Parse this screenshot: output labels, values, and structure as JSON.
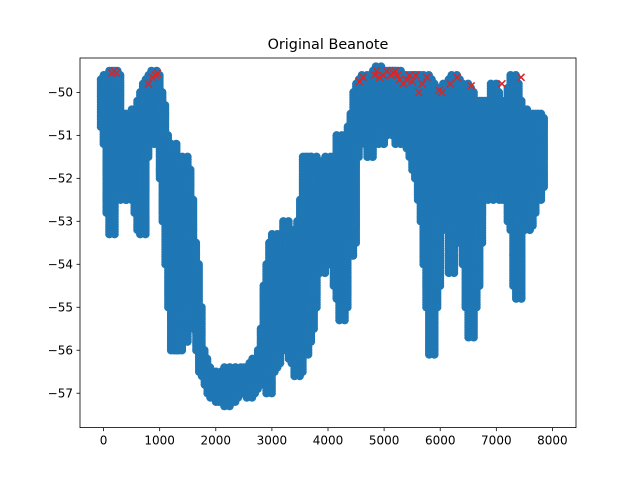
{
  "chart_data": {
    "type": "scatter",
    "title": "Original Beanote",
    "xlabel": "",
    "ylabel": "",
    "xlim": [
      -420,
      8420
    ],
    "ylim": [
      -57.8,
      -49.2
    ],
    "x_ticks": [
      0,
      1000,
      2000,
      3000,
      4000,
      5000,
      6000,
      7000,
      8000
    ],
    "x_tick_labels": [
      "0",
      "1000",
      "2000",
      "3000",
      "4000",
      "5000",
      "6000",
      "7000",
      "8000"
    ],
    "y_ticks": [
      -50,
      -51,
      -52,
      -53,
      -54,
      -55,
      -56,
      -57
    ],
    "y_tick_labels": [
      "−50",
      "−51",
      "−52",
      "−53",
      "−54",
      "−55",
      "−56",
      "−57"
    ],
    "grid": false,
    "legend": "none",
    "colors": {
      "points": "#1f77b4",
      "peaks": "#d62728"
    },
    "series": [
      {
        "marker": "circle",
        "x": [
          0,
          50,
          100,
          150,
          200,
          250,
          300,
          350,
          400,
          450,
          500,
          550,
          600,
          650,
          700,
          750,
          800,
          850,
          900,
          950,
          1000,
          1050,
          1100,
          1150,
          1200,
          1250,
          1300,
          1350,
          1400,
          1450,
          1500,
          1550,
          1600,
          1650,
          1700,
          1750,
          1800,
          1850,
          1900,
          1950,
          2000,
          2050,
          2100,
          2150,
          2200,
          2250,
          2300,
          2350,
          2400,
          2450,
          2500,
          2550,
          2600,
          2650,
          2700,
          2750,
          2800,
          2850,
          2900,
          2950,
          3000,
          3050,
          3100,
          3150,
          3200,
          3250,
          3300,
          3350,
          3400,
          3450,
          3500,
          3550,
          3600,
          3650,
          3700,
          3750,
          3800,
          3850,
          3900,
          3950,
          4000,
          4050,
          4100,
          4150,
          4200,
          4250,
          4300,
          4350,
          4400,
          4450,
          4500,
          4550,
          4600,
          4650,
          4700,
          4750,
          4800,
          4850,
          4900,
          4950,
          5000,
          5050,
          5100,
          5150,
          5200,
          5250,
          5300,
          5350,
          5400,
          5450,
          5500,
          5550,
          5600,
          5650,
          5700,
          5750,
          5800,
          5850,
          5900,
          5950,
          6000,
          6050,
          6100,
          6150,
          6200,
          6250,
          6300,
          6350,
          6400,
          6450,
          6500,
          6550,
          6600,
          6650,
          6700,
          6750,
          6800,
          6850,
          6900,
          6950,
          7000,
          7050,
          7100,
          7150,
          7200,
          7250,
          7300,
          7350,
          7400,
          7450,
          7500,
          7550,
          7600,
          7650,
          7700,
          7750,
          7800,
          7850,
          7900,
          7950,
          8000
        ],
        "ymin": [
          -50.8,
          -51.2,
          -52.8,
          -53.3,
          -52.5,
          -51.8,
          -52.0,
          -52.5,
          -52.2,
          -52.5,
          -51.5,
          -52.4,
          -52.8,
          -53.2,
          -53.3,
          -51.5,
          -50.8,
          -50.8,
          -50.9,
          -51.2,
          -51.0,
          -52.0,
          -53.0,
          -54.0,
          -55.0,
          -56.0,
          -56.0,
          -56.0,
          -55.5,
          -55.8,
          -55.0,
          -54.0,
          -55.0,
          -55.5,
          -56.0,
          -56.5,
          -56.6,
          -56.8,
          -57.0,
          -57.1,
          -57.1,
          -57.2,
          -57.2,
          -57.2,
          -57.3,
          -57.2,
          -57.2,
          -57.1,
          -57.0,
          -57.0,
          -57.0,
          -57.0,
          -57.1,
          -57.0,
          -56.9,
          -56.8,
          -56.8,
          -56.5,
          -56.6,
          -57.0,
          -56.5,
          -56.4,
          -56.3,
          -55.9,
          -55.9,
          -56.0,
          -56.0,
          -56.2,
          -56.3,
          -56.6,
          -56.5,
          -56.0,
          -56.1,
          -55.8,
          -55.5,
          -55.0,
          -54.0,
          -53.8,
          -54.2,
          -54.0,
          -54.0,
          -54.0,
          -53.8,
          -54.5,
          -54.8,
          -55.3,
          -55.0,
          -53.5,
          -53.8,
          -53.5,
          -51.5,
          -51.0,
          -51.0,
          -51.0,
          -51.2,
          -51.5,
          -51.2,
          -51.0,
          -51.0,
          -51.2,
          -51.0,
          -50.8,
          -50.7,
          -50.9,
          -51.0,
          -51.2,
          -51.0,
          -51.0,
          -51.2,
          -51.3,
          -51.5,
          -51.8,
          -52.0,
          -52.5,
          -53.0,
          -54.0,
          -55.0,
          -56.1,
          -55.0,
          -54.5,
          -53.0,
          -52.5,
          -52.8,
          -53.2,
          -54.2,
          -53.5,
          -52.5,
          -52.8,
          -53.5,
          -54.0,
          -55.0,
          -55.7,
          -55.0,
          -54.5,
          -53.5,
          -52.5,
          -52.0,
          -52.3,
          -52.5,
          -52.0,
          -52.0,
          -51.8,
          -52.5,
          -52.5,
          -52.0,
          -53.0,
          -53.2,
          -54.5,
          -54.8,
          -53.0,
          -52.5,
          -53.2,
          -53.1,
          -52.8,
          -52.5,
          -52.5,
          -52.2,
          -52.0,
          -51.8
        ],
        "ymax": [
          -49.7,
          -49.6,
          -49.6,
          -49.5,
          -49.5,
          -49.6,
          -50.5,
          -50.5,
          -50.6,
          -50.8,
          -50.6,
          -50.4,
          -50.4,
          -50.2,
          -50.0,
          -49.8,
          -49.7,
          -49.6,
          -49.5,
          -49.6,
          -50.0,
          -50.3,
          -51.0,
          -51.5,
          -51.5,
          -51.2,
          -51.5,
          -51.8,
          -52.0,
          -51.5,
          -51.8,
          -52.5,
          -53.5,
          -54.0,
          -55.0,
          -56.0,
          -56.2,
          -56.4,
          -56.5,
          -56.6,
          -56.6,
          -56.5,
          -56.6,
          -56.6,
          -56.4,
          -56.5,
          -56.4,
          -56.5,
          -56.4,
          -56.5,
          -56.5,
          -56.4,
          -56.5,
          -56.3,
          -56.2,
          -56.2,
          -56.0,
          -55.5,
          -54.5,
          -54.0,
          -53.5,
          -53.3,
          -53.5,
          -53.6,
          -53.3,
          -53.0,
          -53.5,
          -53.8,
          -53.5,
          -53.2,
          -53.0,
          -52.5,
          -51.5,
          -51.5,
          -51.6,
          -51.5,
          -52.0,
          -52.5,
          -52.3,
          -51.6,
          -51.5,
          -51.8,
          -51.6,
          -51.5,
          -51.0,
          -51.2,
          -51.5,
          -51.0,
          -50.8,
          -50.5,
          -50.0,
          -49.8,
          -49.7,
          -49.6,
          -49.8,
          -49.8,
          -49.6,
          -49.5,
          -49.4,
          -49.5,
          -49.6,
          -49.5,
          -49.5,
          -49.5,
          -49.5,
          -49.5,
          -49.6,
          -49.6,
          -49.7,
          -49.7,
          -49.6,
          -49.6,
          -49.6,
          -49.7,
          -49.7,
          -49.6,
          -49.7,
          -49.8,
          -49.9,
          -50.0,
          -50.0,
          -49.9,
          -49.8,
          -49.8,
          -49.7,
          -49.6,
          -49.7,
          -49.9,
          -50.2,
          -49.8,
          -49.9,
          -50.0,
          -50.2,
          -50.3,
          -50.2,
          -50.2,
          -50.3,
          -50.4,
          -50.2,
          -49.8,
          -50.0,
          -50.2,
          -50.4,
          -50.3,
          -50.2,
          -49.9,
          -49.6,
          -49.8,
          -50.2,
          -50.4,
          -50.4,
          -50.6,
          -50.8,
          -50.7,
          -50.5,
          -50.5,
          -50.6
        ]
      },
      {
        "marker": "x",
        "x": [
          150,
          190,
          230,
          800,
          870,
          930,
          960,
          4560,
          4620,
          4830,
          4870,
          4920,
          4980,
          5050,
          5120,
          5170,
          5200,
          5240,
          5280,
          5340,
          5400,
          5450,
          5500,
          5560,
          5620,
          5680,
          5760,
          5980,
          6030,
          6180,
          6300,
          6550,
          7100,
          7440
        ],
        "y": [
          -49.55,
          -49.5,
          -49.55,
          -49.8,
          -49.65,
          -49.6,
          -49.55,
          -49.75,
          -49.65,
          -49.6,
          -49.5,
          -49.65,
          -49.6,
          -49.5,
          -49.6,
          -49.55,
          -49.5,
          -49.6,
          -49.7,
          -49.8,
          -49.7,
          -49.6,
          -49.75,
          -49.6,
          -50.0,
          -49.8,
          -49.65,
          -49.95,
          -50.0,
          -49.8,
          -49.65,
          -49.85,
          -49.8,
          -49.65
        ]
      }
    ]
  }
}
